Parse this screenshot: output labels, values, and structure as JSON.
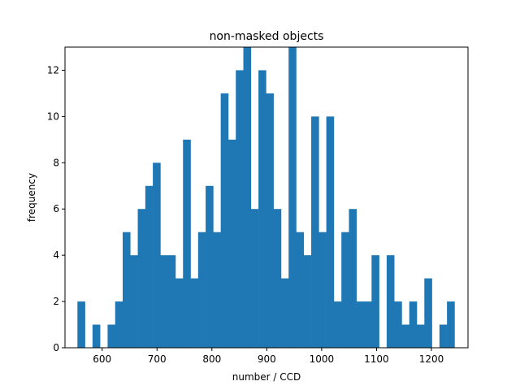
{
  "chart_data": {
    "type": "bar",
    "title": "non-masked objects",
    "xlabel": "number / CCD",
    "ylabel": "frequency",
    "xlim": [
      532.35,
      1266.65
    ],
    "ylim": [
      0,
      13
    ],
    "grid": false,
    "bin_start": 555.0,
    "bin_width": 13.742,
    "counts": [
      2,
      0,
      1,
      0,
      1,
      2,
      5,
      4,
      6,
      7,
      8,
      4,
      4,
      3,
      9,
      3,
      5,
      7,
      5,
      11,
      9,
      12,
      13,
      6,
      12,
      11,
      6,
      3,
      13,
      5,
      4,
      10,
      5,
      10,
      2,
      5,
      6,
      2,
      2,
      4,
      0,
      4,
      2,
      1,
      2,
      1,
      3,
      0,
      1,
      2
    ],
    "xticks": [
      600,
      700,
      800,
      900,
      1000,
      1100,
      1200
    ],
    "yticks": [
      0,
      2,
      4,
      6,
      8,
      10,
      12
    ],
    "bar_color": "#1f77b4"
  }
}
